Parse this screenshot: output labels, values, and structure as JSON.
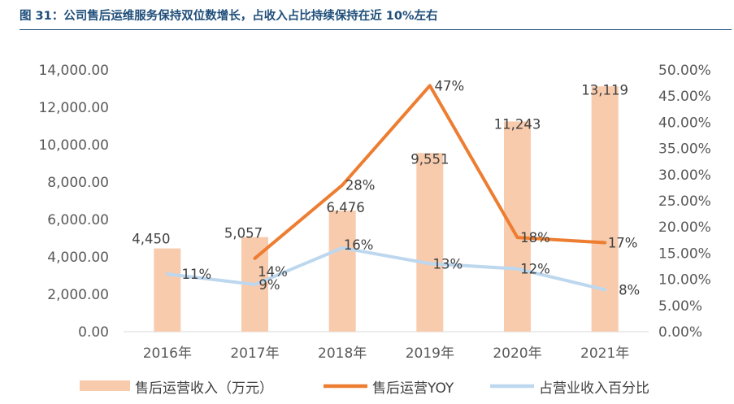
{
  "title": "图 31：公司售后运维服务保持双位数增长，占收入占比持续保持在近 10%左右",
  "chart_data": {
    "type": "bar+line",
    "categories": [
      "2016年",
      "2017年",
      "2018年",
      "2019年",
      "2020年",
      "2021年"
    ],
    "series": [
      {
        "name": "售后运营收入（万元）",
        "type": "bar",
        "axis": "left",
        "values": [
          4450,
          5057,
          6476,
          9551,
          11243,
          13119
        ],
        "labels": [
          "4,450",
          "5,057",
          "6,476",
          "9,551",
          "11,243",
          "13,119"
        ],
        "color": "#f8cbad"
      },
      {
        "name": "售后运营YOY",
        "type": "line",
        "axis": "right",
        "values": [
          null,
          14,
          28,
          47,
          18,
          17
        ],
        "labels": [
          "",
          "14%",
          "28%",
          "47%",
          "18%",
          "17%"
        ],
        "color": "#ed7d31"
      },
      {
        "name": "占营业收入百分比",
        "type": "line",
        "axis": "right",
        "values": [
          11,
          9,
          16,
          13,
          12,
          8
        ],
        "labels": [
          "11%",
          "9%",
          "16%",
          "13%",
          "12%",
          "8%"
        ],
        "color": "#bdd7ee"
      }
    ],
    "yleft": {
      "min": 0,
      "max": 14000,
      "ticks": [
        "0.00",
        "2,000.00",
        "4,000.00",
        "6,000.00",
        "8,000.00",
        "10,000.00",
        "12,000.00",
        "14,000.00"
      ]
    },
    "yright": {
      "min": 0,
      "max": 50,
      "ticks": [
        "0.00%",
        "5.00%",
        "10.00%",
        "15.00%",
        "20.00%",
        "25.00%",
        "30.00%",
        "35.00%",
        "40.00%",
        "45.00%",
        "50.00%"
      ]
    },
    "legend_position": "bottom",
    "grid": false
  }
}
